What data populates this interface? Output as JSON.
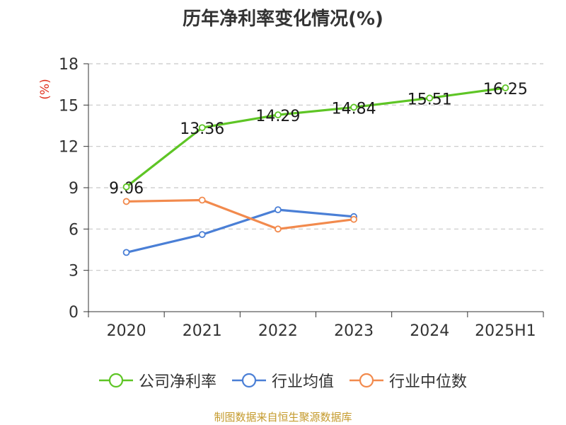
{
  "chart_data": {
    "type": "line",
    "title": "历年净利率变化情况(%)",
    "ylabel": "(%)",
    "categories": [
      "2020",
      "2021",
      "2022",
      "2023",
      "2024",
      "2025H1"
    ],
    "ylim": [
      0,
      18
    ],
    "yticks": [
      0,
      3,
      6,
      9,
      12,
      15,
      18
    ],
    "grid": true,
    "legend_position": "bottom",
    "series": [
      {
        "name": "公司净利率",
        "color": "#5ec525",
        "values": [
          9.06,
          13.36,
          14.29,
          14.84,
          15.51,
          16.25
        ],
        "labels": [
          "9.06",
          "13.36",
          "14.29",
          "14.84",
          "15.51",
          "16.25"
        ]
      },
      {
        "name": "行业均值",
        "color": "#4a7fd6",
        "values": [
          4.3,
          5.6,
          7.4,
          6.9,
          null,
          null
        ]
      },
      {
        "name": "行业中位数",
        "color": "#f28a4d",
        "values": [
          8.0,
          8.1,
          6.0,
          6.7,
          null,
          null
        ]
      }
    ]
  },
  "source_note": "制图数据来自恒生聚源数据库"
}
